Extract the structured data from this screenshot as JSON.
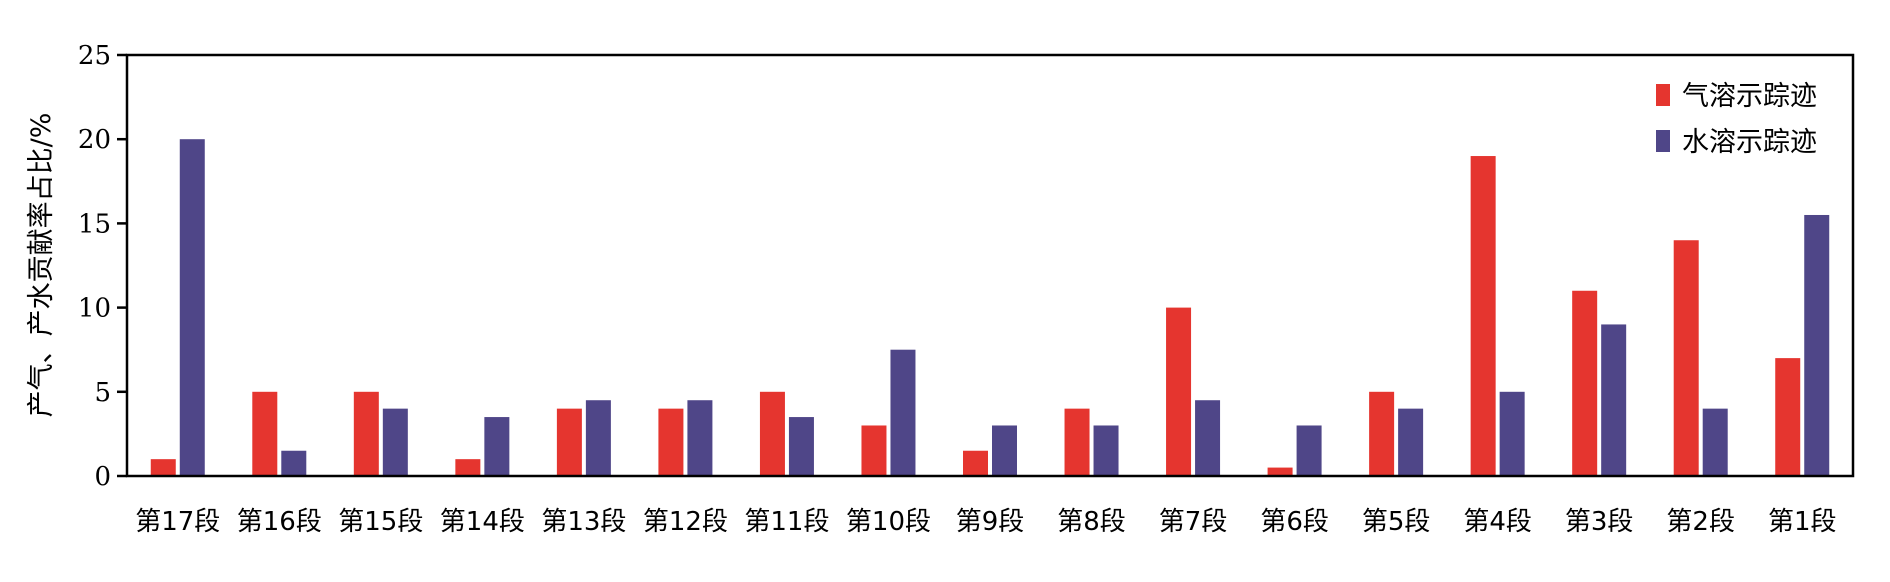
{
  "chart_data": {
    "type": "bar",
    "title": "",
    "xlabel": "",
    "ylabel": "产气、产水贡献率占比/%",
    "ylim": [
      0,
      25
    ],
    "yticks": [
      0,
      5,
      10,
      15,
      20,
      25
    ],
    "grid": false,
    "legend_position": "top-right",
    "categories": [
      "第17段",
      "第16段",
      "第15段",
      "第14段",
      "第13段",
      "第12段",
      "第11段",
      "第10段",
      "第9段",
      "第8段",
      "第7段",
      "第6段",
      "第5段",
      "第4段",
      "第3段",
      "第2段",
      "第1段"
    ],
    "series": [
      {
        "name": "气溶示踪迹",
        "color": "#e5352f",
        "values": [
          1,
          5,
          5,
          1,
          4,
          4,
          5,
          3,
          1.5,
          4,
          10,
          0.5,
          5,
          19,
          11,
          14,
          7
        ]
      },
      {
        "name": "水溶示踪迹",
        "color": "#4f4688",
        "values": [
          20,
          1.5,
          4,
          3.5,
          4.5,
          4.5,
          3.5,
          7.5,
          3,
          3,
          4.5,
          3,
          4,
          5,
          9,
          4,
          15.5
        ]
      }
    ]
  }
}
